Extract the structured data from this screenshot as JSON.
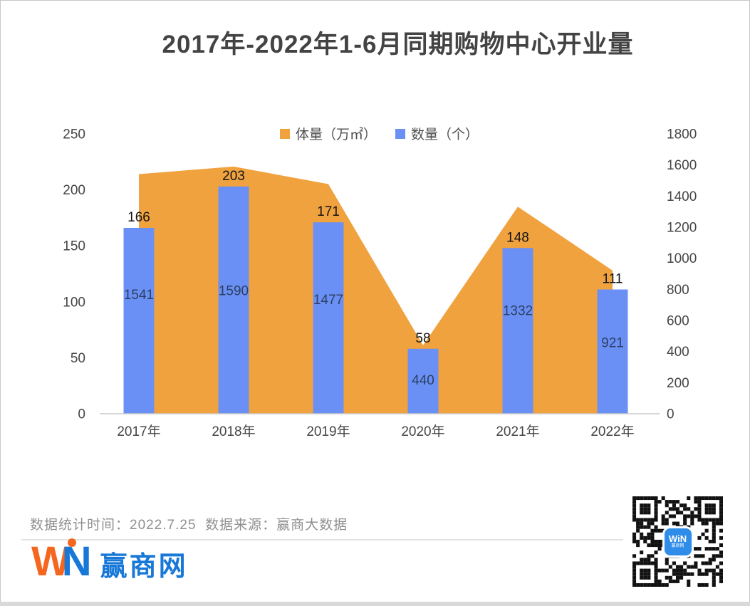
{
  "title": "2017年-2022年1-6月同期购物中心开业量",
  "legend": [
    {
      "label": "体量（万㎡）",
      "color": "#F0A23F"
    },
    {
      "label": "数量（个）",
      "color": "#6B90F5"
    }
  ],
  "chart_data": {
    "type": "combo",
    "title": "2017年-2022年1-6月同期购物中心开业量",
    "categories": [
      "2017年",
      "2018年",
      "2019年",
      "2020年",
      "2021年",
      "2022年"
    ],
    "series": [
      {
        "name": "体量（万㎡）",
        "type": "area",
        "axis": "right",
        "color": "#F0A23F",
        "label_color": "#2B3F63",
        "values": [
          1541,
          1590,
          1477,
          440,
          1332,
          921
        ]
      },
      {
        "name": "数量（个）",
        "type": "bar",
        "axis": "left",
        "color": "#6B90F5",
        "label_color": "#141414",
        "values": [
          166,
          203,
          171,
          58,
          148,
          111
        ]
      }
    ],
    "left_axis": {
      "min": 0,
      "max": 250,
      "ticks": [
        0,
        50,
        100,
        150,
        200,
        250
      ]
    },
    "right_axis": {
      "min": 0,
      "max": 1800,
      "ticks": [
        0,
        200,
        400,
        600,
        800,
        1000,
        1200,
        1400,
        1600,
        1800
      ]
    },
    "grid": false,
    "legend_position": "top-center"
  },
  "footer": {
    "note": "数据统计时间：2022.7.25  数据来源：赢商大数据",
    "logo": {
      "w": "W",
      "n": "N",
      "cn": "赢商网"
    },
    "qr": {
      "line1": "WiN",
      "line2": "赢商网"
    }
  }
}
